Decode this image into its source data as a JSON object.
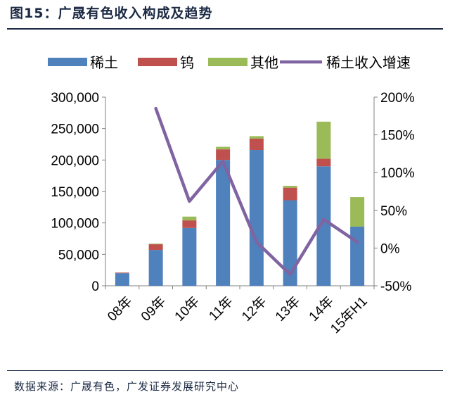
{
  "figure": {
    "title": "图15：广晟有色收入构成及趋势",
    "source": "数据来源：广晟有色，广发证券发展研究中心"
  },
  "colors": {
    "rare_earth": "#4f81bd",
    "tungsten": "#c0504d",
    "other": "#9bbb59",
    "growth": "#8064a2",
    "axis": "#808080"
  },
  "chart_data": {
    "type": "bar",
    "stacked": true,
    "categories": [
      "08年",
      "09年",
      "10年",
      "11年",
      "12年",
      "13年",
      "14年",
      "15年H1"
    ],
    "series": [
      {
        "name": "稀土",
        "values": [
          20000,
          57000,
          92000,
          200000,
          216000,
          136000,
          190000,
          94000
        ]
      },
      {
        "name": "钨",
        "values": [
          1000,
          9000,
          12000,
          17000,
          18000,
          20000,
          12000,
          0
        ]
      },
      {
        "name": "其他",
        "values": [
          0,
          1000,
          6000,
          4000,
          4000,
          3000,
          59000,
          47000
        ]
      }
    ],
    "line_series": {
      "name": "稀土收入增速",
      "axis": "right",
      "values": [
        null,
        185,
        62,
        115,
        8,
        -35,
        38,
        8
      ]
    },
    "ylim_left": [
      0,
      300000
    ],
    "yticks_left": [
      "0",
      "50,000",
      "100,000",
      "150,000",
      "200,000",
      "250,000",
      "300,000"
    ],
    "ylim_right": [
      -50,
      200
    ],
    "yticks_right": [
      "-50%",
      "0%",
      "50%",
      "100%",
      "150%",
      "200%"
    ],
    "legend": {
      "position": "top",
      "entries": [
        {
          "label": "稀土",
          "kind": "bar"
        },
        {
          "label": "钨",
          "kind": "bar"
        },
        {
          "label": "其他",
          "kind": "bar"
        },
        {
          "label": "稀土收入增速",
          "kind": "line"
        }
      ]
    }
  }
}
